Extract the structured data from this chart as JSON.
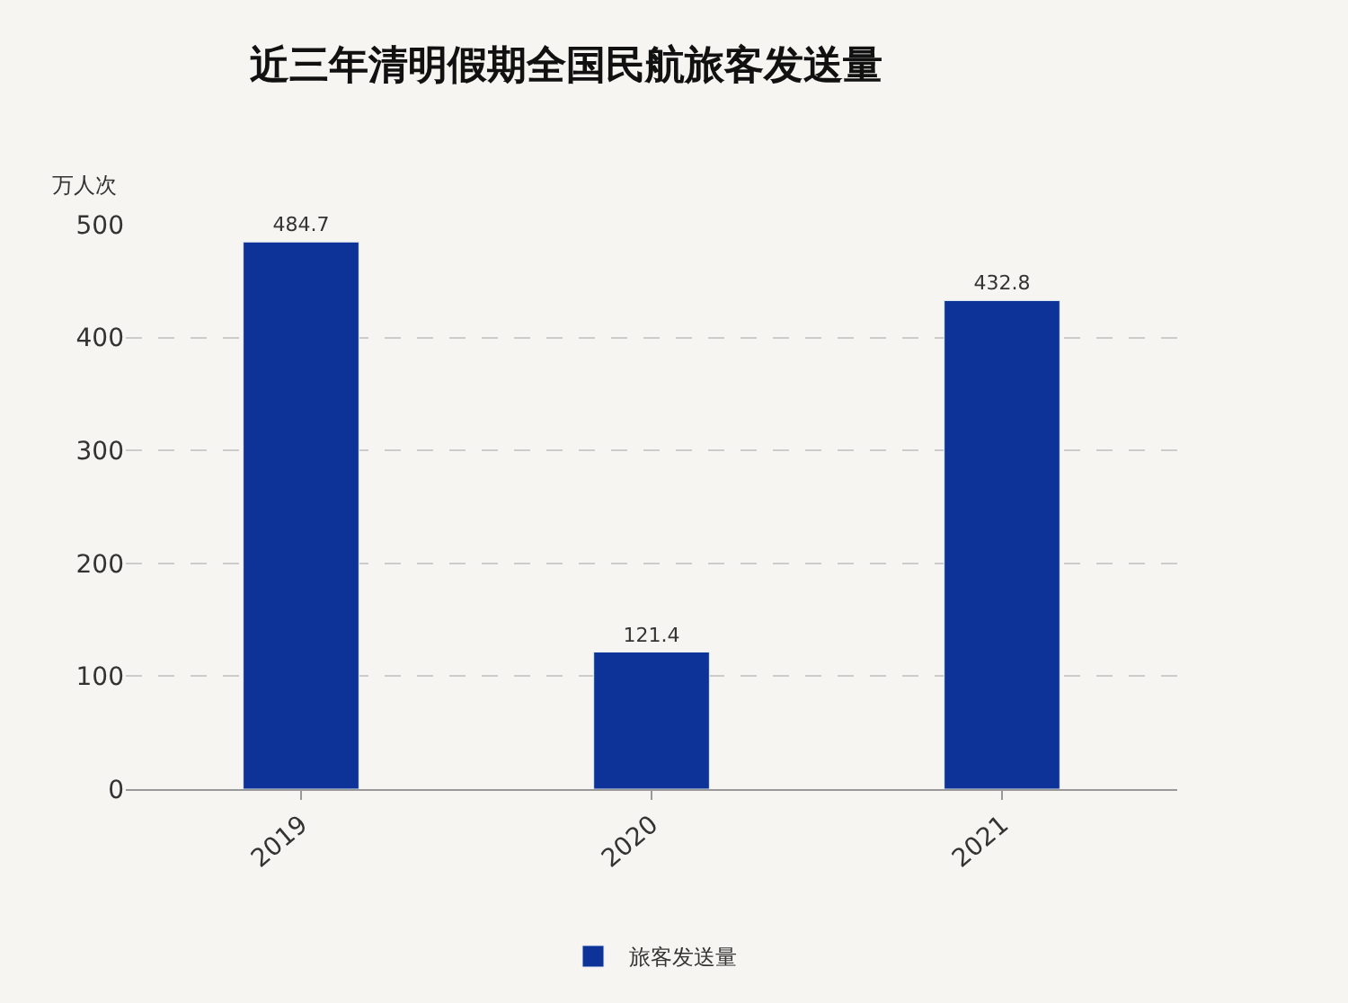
{
  "chart_data": {
    "type": "bar",
    "title": "近三年清明假期全国民航旅客发送量",
    "ylabel": "万人次",
    "categories": [
      "2019",
      "2020",
      "2021"
    ],
    "series": [
      {
        "name": "旅客发送量",
        "color": "#0d3399",
        "values": [
          484.7,
          121.4,
          432.8
        ]
      }
    ],
    "ylim": [
      0,
      500
    ],
    "yticks": [
      0,
      100,
      200,
      300,
      400,
      500
    ],
    "grid": "y",
    "legend": "bottom",
    "data_labels": true
  }
}
